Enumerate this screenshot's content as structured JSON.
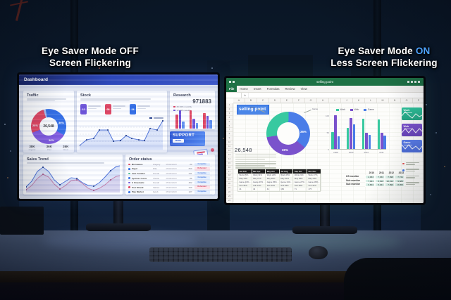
{
  "captions": {
    "left": {
      "line1": "Eye Saver Mode OFF",
      "line2": "Screen Flickering"
    },
    "right": {
      "line1_prefix": "Eye Saver Mode ",
      "line1_highlight": "ON",
      "line2": "Less Screen Flickering",
      "highlight_color": "#4da3ff"
    }
  },
  "dashboard": {
    "header_title": "Dashboard",
    "traffic": {
      "title": "Traffic",
      "center_value": "26,548",
      "segments": [
        {
          "name": "direct",
          "color": "#2e6be6",
          "pct": 36,
          "label": "36%"
        },
        {
          "name": "organic",
          "color": "#7e57e0",
          "pct": 36,
          "label": "36%"
        },
        {
          "name": "referral",
          "color": "#e0415e",
          "pct": 26,
          "label": "26%"
        },
        {
          "name": "other",
          "color": "#a9bdf0",
          "pct": 2,
          "label": ""
        }
      ],
      "stats": [
        {
          "value": "38K",
          "label": "Organic"
        },
        {
          "value": "36K",
          "label": "Paid"
        },
        {
          "value": "26K",
          "label": "Direct"
        }
      ]
    },
    "stock": {
      "title": "Stock",
      "chips": [
        {
          "value": "12",
          "color": "#6a4fd8"
        },
        {
          "value": "08",
          "color": "#e0415e"
        },
        {
          "value": "24",
          "color": "#2e6be6"
        }
      ],
      "line_points": [
        [
          0,
          38
        ],
        [
          10,
          30
        ],
        [
          20,
          28
        ],
        [
          28,
          16
        ],
        [
          40,
          16
        ],
        [
          48,
          32
        ],
        [
          58,
          31
        ],
        [
          66,
          24
        ],
        [
          74,
          28
        ],
        [
          84,
          30
        ],
        [
          92,
          31
        ],
        [
          100,
          14
        ],
        [
          110,
          16
        ],
        [
          118,
          3
        ]
      ]
    },
    "sales_trend": {
      "title": "Sales Trend",
      "blue_points": [
        [
          0,
          36
        ],
        [
          8,
          28
        ],
        [
          16,
          14
        ],
        [
          24,
          8
        ],
        [
          32,
          14
        ],
        [
          40,
          26
        ],
        [
          48,
          33
        ],
        [
          56,
          28
        ],
        [
          64,
          23
        ],
        [
          72,
          24
        ],
        [
          80,
          30
        ],
        [
          88,
          34
        ],
        [
          96,
          35
        ],
        [
          104,
          30
        ],
        [
          112,
          22
        ],
        [
          120,
          13
        ],
        [
          128,
          7
        ],
        [
          133,
          6
        ]
      ],
      "pink_points": [
        [
          0,
          40
        ],
        [
          8,
          34
        ],
        [
          16,
          24
        ],
        [
          24,
          18
        ],
        [
          32,
          22
        ],
        [
          40,
          32
        ],
        [
          48,
          39
        ],
        [
          56,
          34
        ],
        [
          64,
          27
        ],
        [
          72,
          26
        ],
        [
          80,
          31
        ],
        [
          88,
          38
        ],
        [
          96,
          41
        ],
        [
          104,
          38
        ],
        [
          112,
          33
        ],
        [
          120,
          26
        ],
        [
          128,
          21
        ],
        [
          133,
          20
        ]
      ]
    },
    "order_status": {
      "title": "Order status",
      "rows": [
        {
          "dot": "#e0415e",
          "product": "Microwave",
          "customer": "Gregory",
          "date": "05/02/2023",
          "qty": "24",
          "status": "Complete",
          "kind": "ok"
        },
        {
          "dot": "#2e6be6",
          "product": "Bagel",
          "customer": "Mike",
          "date": "05/04/2023",
          "qty": "810",
          "status": "Refunded",
          "kind": "refund"
        },
        {
          "dot": "#38b88a",
          "product": "Heat Tumbler",
          "customer": "Ronald",
          "date": "05/06/2023",
          "qty": "241",
          "status": "Complete",
          "kind": "ok"
        },
        {
          "dot": "#2e6be6",
          "product": "Eyeliner Curve",
          "customer": "Charlie",
          "date": "05/09/2023",
          "qty": "86",
          "status": "Complete",
          "kind": "ok"
        },
        {
          "dot": "#6a4fd8",
          "product": "G Cinematic",
          "customer": "Donald",
          "date": "05/12/2023",
          "qty": "402",
          "status": "Complete",
          "kind": "ok"
        },
        {
          "dot": "#e0415e",
          "product": "Post Shield",
          "customer": "Nathan",
          "date": "05/16/2023",
          "qty": "310",
          "status": "Refunded",
          "kind": "refund"
        },
        {
          "dot": "#2e6be6",
          "product": "Play Market",
          "customer": "Jacob",
          "date": "05/21/2023",
          "qty": "127",
          "status": "Complete",
          "kind": "ok"
        }
      ]
    },
    "research": {
      "title": "Research",
      "value": "971883",
      "legend": [
        {
          "color": "#e0415e",
          "label": "45.36% monthly"
        },
        {
          "color": "#6a4fd8",
          "label": "12.69% weekly"
        }
      ],
      "bar_colors": [
        "#e0415e",
        "#6a4fd8",
        "#5b8df0"
      ],
      "groups": [
        {
          "bars": [
            20,
            26,
            10
          ]
        },
        {
          "bars": [
            26,
            14,
            8
          ]
        },
        {
          "bars": [
            22,
            18,
            12
          ]
        }
      ]
    },
    "support": {
      "label": "SUPPORT",
      "button": "MORE"
    }
  },
  "sheet": {
    "titlebar_title": "selling point",
    "tabs": [
      "File",
      "Home",
      "Insert",
      "Formulas",
      "Review",
      "View"
    ],
    "formula_fx": "fx",
    "columns": [
      "A",
      "B",
      "C",
      "D",
      "E",
      "F",
      "G",
      "H",
      "I",
      "J",
      "K",
      "L",
      "M",
      "N",
      "O",
      "P"
    ],
    "row_count": 24,
    "active_cell": "selling point",
    "big_number": "26,548",
    "donut": {
      "segments": [
        {
          "name": "work",
          "color": "#38c9a0",
          "pct": 28,
          "label": ""
        },
        {
          "name": "game",
          "color": "#4a7de8",
          "pct": 36,
          "label": "36%"
        },
        {
          "name": "web",
          "color": "#7a52cc",
          "pct": 36,
          "label": "36%"
        }
      ],
      "callout_left": "Work",
      "callout_right": "Game"
    },
    "bar_chart": {
      "type": "bar",
      "categories": [
        "2008",
        "2009",
        "2010",
        "2011"
      ],
      "series": [
        {
          "name": "Work",
          "color": "#38c9a0",
          "values": [
            50,
            62,
            90,
            88
          ]
        },
        {
          "name": "Web",
          "color": "#7a52cc",
          "values": [
            100,
            92,
            48,
            48
          ]
        },
        {
          "name": "Game",
          "color": "#4a7de8",
          "values": [
            38,
            72,
            42,
            40
          ]
        }
      ],
      "yticks": [
        100,
        50,
        0
      ],
      "ylim": [
        0,
        100
      ]
    },
    "cards": [
      {
        "title": "Work",
        "color1": "#2fc39c",
        "color2": "#26a483",
        "points": [
          [
            0,
            14
          ],
          [
            5,
            8
          ],
          [
            10,
            13
          ],
          [
            15,
            17
          ],
          [
            20,
            11
          ],
          [
            25,
            15
          ],
          [
            29,
            13
          ]
        ]
      },
      {
        "title": "Web",
        "color1": "#7a52cc",
        "color2": "#6743b8",
        "points": [
          [
            0,
            15
          ],
          [
            5,
            9
          ],
          [
            10,
            15
          ],
          [
            15,
            9
          ],
          [
            20,
            15
          ],
          [
            25,
            9
          ],
          [
            29,
            13
          ]
        ]
      },
      {
        "title": "Game",
        "color1": "#5b7de8",
        "color2": "#4a6ad4",
        "points": [
          [
            0,
            9
          ],
          [
            5,
            15
          ],
          [
            10,
            9
          ],
          [
            15,
            15
          ],
          [
            20,
            11
          ],
          [
            25,
            16
          ],
          [
            29,
            11
          ]
        ]
      }
    ],
    "legend_dots": [
      "#e05252",
      "#4a7de8",
      "#7a52cc",
      "#6aa9e8"
    ],
    "table": {
      "headers": [
        "Jan Feb",
        "Mar Apr",
        "May Jun",
        "Jul Aug",
        "Sep Oct",
        "Nov Dec"
      ],
      "rows": [
        [
          "Work 25%",
          "Work 31%",
          "Work 24%",
          "Work 25%",
          "Work 21%",
          "Work 27%"
        ],
        [
          "May 34%",
          "May 27%",
          "May 36%",
          "May 34%",
          "May 38%",
          "May 24%"
        ],
        [
          "Game 31%",
          "Game 37%",
          "Game 35%",
          "Game 31%",
          "Game 27%",
          "Game 39%"
        ],
        [
          "Sub 45%",
          "Sub 41%",
          "Sub 44%",
          "Sub 45%",
          "Sub 48%",
          "Sub 42%"
        ],
        [
          "41",
          "42",
          "41",
          "184",
          "71",
          "175"
        ]
      ]
    },
    "mini_table": {
      "years": [
        "2010",
        "2011",
        "2012",
        "2013"
      ],
      "rows": [
        {
          "label": "US monitor",
          "values": [
            "4,063",
            "7,153",
            "7,098",
            "7,741"
          ]
        },
        {
          "label": "Sub monitor",
          "values": [
            "7,041",
            "8,610",
            "10,214",
            "9,680"
          ]
        },
        {
          "label": "Sub monitor",
          "values": [
            "6,804",
            "5,041",
            "7,890",
            "8,953"
          ]
        }
      ]
    }
  }
}
